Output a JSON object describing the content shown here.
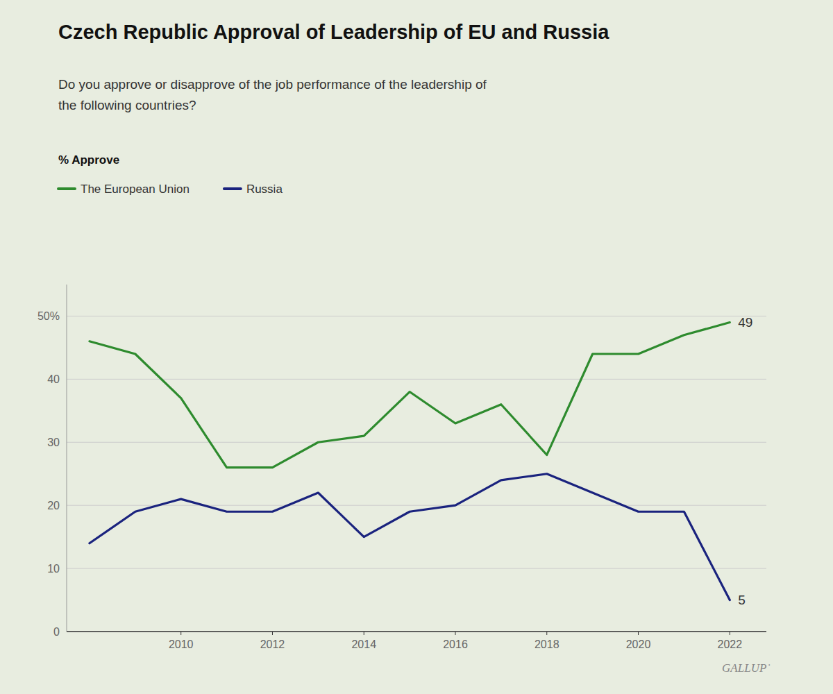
{
  "chart_data": {
    "type": "line",
    "title": "Czech Republic Approval of Leadership of EU and Russia",
    "subtitle": "Do you approve or disapprove of the job performance of the leadership of\nthe following countries?",
    "ylabel": "% Approve",
    "x": [
      2008,
      2009,
      2010,
      2011,
      2012,
      2013,
      2014,
      2015,
      2016,
      2017,
      2018,
      2019,
      2020,
      2021,
      2022
    ],
    "series": [
      {
        "name": "The European Union",
        "color": "#2e8b2e",
        "values": [
          46,
          44,
          37,
          26,
          26,
          30,
          31,
          38,
          33,
          36,
          28,
          44,
          44,
          47,
          49
        ]
      },
      {
        "name": "Russia",
        "color": "#1a237e",
        "values": [
          14,
          19,
          21,
          19,
          19,
          22,
          15,
          19,
          20,
          24,
          25,
          22,
          19,
          19,
          5
        ]
      }
    ],
    "xlim": [
      2007.5,
      2022.8
    ],
    "xticks": [
      2010,
      2012,
      2014,
      2016,
      2018,
      2020,
      2022
    ],
    "ylim": [
      0,
      55
    ],
    "yticks": [
      0,
      10,
      20,
      30,
      40,
      {
        "value": 50,
        "label": "50%"
      }
    ],
    "grid": true,
    "legend": "top-left",
    "annotations": [
      {
        "text": "49",
        "x": 2022,
        "y": 49
      },
      {
        "text": "5",
        "x": 2022,
        "y": 5
      },
      {
        "text": "GALLUP˙"
      }
    ]
  }
}
